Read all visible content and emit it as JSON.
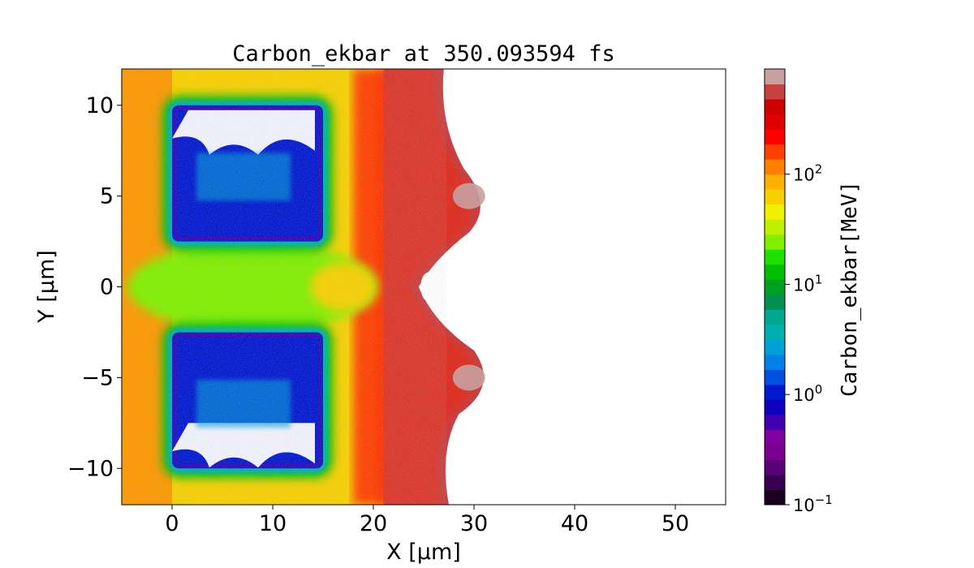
{
  "chart_data": {
    "type": "heatmap",
    "title": "Carbon_ekbar at 350.093594 fs",
    "xlabel": "X  [μm]",
    "ylabel": "Y  [μm]",
    "xlim": [
      -5,
      55
    ],
    "ylim": [
      -12,
      12
    ],
    "xticks": [
      0,
      10,
      20,
      30,
      40,
      50
    ],
    "xtick_labels": [
      "0",
      "10",
      "20",
      "30",
      "40",
      "50"
    ],
    "yticks": [
      -10,
      -5,
      0,
      5,
      10
    ],
    "ytick_labels": [
      "−10",
      "−5",
      "0",
      "5",
      "10"
    ],
    "colorbar": {
      "label": "Carbon_ekbar[MeV]",
      "scale": "log",
      "range": [
        0.1,
        900
      ],
      "ticks": [
        0.1,
        1,
        10,
        100
      ],
      "tick_bases": [
        "10",
        "10",
        "10",
        "10"
      ],
      "tick_exponents": [
        "−1",
        "0",
        "1",
        "2"
      ]
    },
    "colormap": [
      "#1a0020",
      "#3a0050",
      "#5a0078",
      "#7a0090",
      "#8000a0",
      "#4000b0",
      "#1000c0",
      "#0018d0",
      "#0050e0",
      "#0080e8",
      "#00a0d8",
      "#00b0b0",
      "#00a890",
      "#009050",
      "#00a020",
      "#00c000",
      "#20e000",
      "#80f000",
      "#c0f000",
      "#f0f000",
      "#f8d000",
      "#ffb000",
      "#ff8000",
      "#ff4000",
      "#ff0000",
      "#e00000",
      "#d00000",
      "#c84040",
      "#c8a0a0"
    ],
    "features": [
      {
        "region": "upper-box",
        "x": [
          0,
          15
        ],
        "y": [
          2.5,
          10
        ],
        "level_MeV": 1.2
      },
      {
        "region": "lower-box",
        "x": [
          0,
          15
        ],
        "y": [
          -10,
          -2.5
        ],
        "level_MeV": 1.2
      },
      {
        "region": "box-rim",
        "level_MeV": 4
      },
      {
        "region": "gap-center",
        "x": [
          0,
          20
        ],
        "y": [
          -2,
          2
        ],
        "level_MeV": 25
      },
      {
        "region": "halo",
        "level_MeV": 60
      },
      {
        "region": "front",
        "x": [
          20,
          31
        ],
        "level_MeV": 500
      },
      {
        "region": "hotspot-upper",
        "x": [
          30,
          5
        ],
        "level_MeV": 900
      },
      {
        "region": "hotspot-lower",
        "x": [
          30,
          -5
        ],
        "level_MeV": 900
      }
    ]
  }
}
